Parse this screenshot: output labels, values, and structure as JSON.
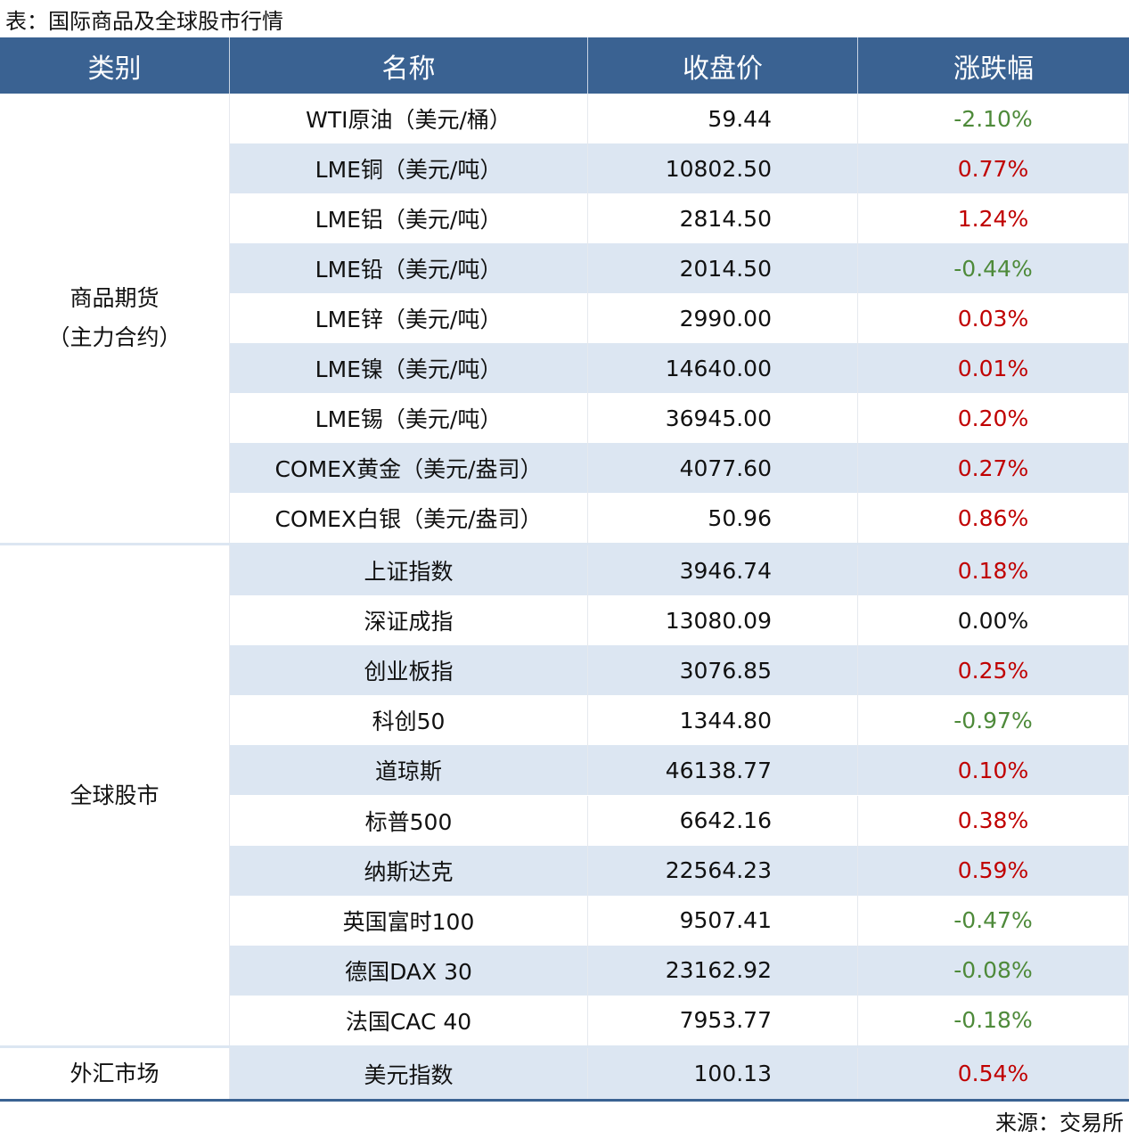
{
  "title": "表：国际商品及全球股市行情",
  "source": "来源：交易所",
  "colors": {
    "header_bg": "#3a6292",
    "stripe": "#dce6f2",
    "up": "#c00000",
    "down": "#4e8a3a",
    "flat": "#111111"
  },
  "headers": [
    "类别",
    "名称",
    "收盘价",
    "涨跌幅"
  ],
  "groups": [
    {
      "category": "商品期货\n（主力合约）",
      "rows": [
        {
          "name": "WTI原油（美元/桶）",
          "price": "59.44",
          "change": "-2.10%",
          "dir": "down"
        },
        {
          "name": "LME铜（美元/吨）",
          "price": "10802.50",
          "change": "0.77%",
          "dir": "up"
        },
        {
          "name": "LME铝（美元/吨）",
          "price": "2814.50",
          "change": "1.24%",
          "dir": "up"
        },
        {
          "name": "LME铅（美元/吨）",
          "price": "2014.50",
          "change": "-0.44%",
          "dir": "down"
        },
        {
          "name": "LME锌（美元/吨）",
          "price": "2990.00",
          "change": "0.03%",
          "dir": "up"
        },
        {
          "name": "LME镍（美元/吨）",
          "price": "14640.00",
          "change": "0.01%",
          "dir": "up"
        },
        {
          "name": "LME锡（美元/吨）",
          "price": "36945.00",
          "change": "0.20%",
          "dir": "up"
        },
        {
          "name": "COMEX黄金（美元/盎司）",
          "price": "4077.60",
          "change": "0.27%",
          "dir": "up"
        },
        {
          "name": "COMEX白银（美元/盎司）",
          "price": "50.96",
          "change": "0.86%",
          "dir": "up"
        }
      ]
    },
    {
      "category": "全球股市",
      "rows": [
        {
          "name": "上证指数",
          "price": "3946.74",
          "change": "0.18%",
          "dir": "up"
        },
        {
          "name": "深证成指",
          "price": "13080.09",
          "change": "0.00%",
          "dir": "flat"
        },
        {
          "name": "创业板指",
          "price": "3076.85",
          "change": "0.25%",
          "dir": "up"
        },
        {
          "name": "科创50",
          "price": "1344.80",
          "change": "-0.97%",
          "dir": "down"
        },
        {
          "name": "道琼斯",
          "price": "46138.77",
          "change": "0.10%",
          "dir": "up"
        },
        {
          "name": "标普500",
          "price": "6642.16",
          "change": "0.38%",
          "dir": "up"
        },
        {
          "name": "纳斯达克",
          "price": "22564.23",
          "change": "0.59%",
          "dir": "up"
        },
        {
          "name": "英国富时100",
          "price": "9507.41",
          "change": "-0.47%",
          "dir": "down"
        },
        {
          "name": "德国DAX 30",
          "price": "23162.92",
          "change": "-0.08%",
          "dir": "down"
        },
        {
          "name": "法国CAC 40",
          "price": "7953.77",
          "change": "-0.18%",
          "dir": "down"
        }
      ]
    },
    {
      "category": "外汇市场",
      "rows": [
        {
          "name": "美元指数",
          "price": "100.13",
          "change": "0.54%",
          "dir": "up"
        }
      ]
    }
  ]
}
